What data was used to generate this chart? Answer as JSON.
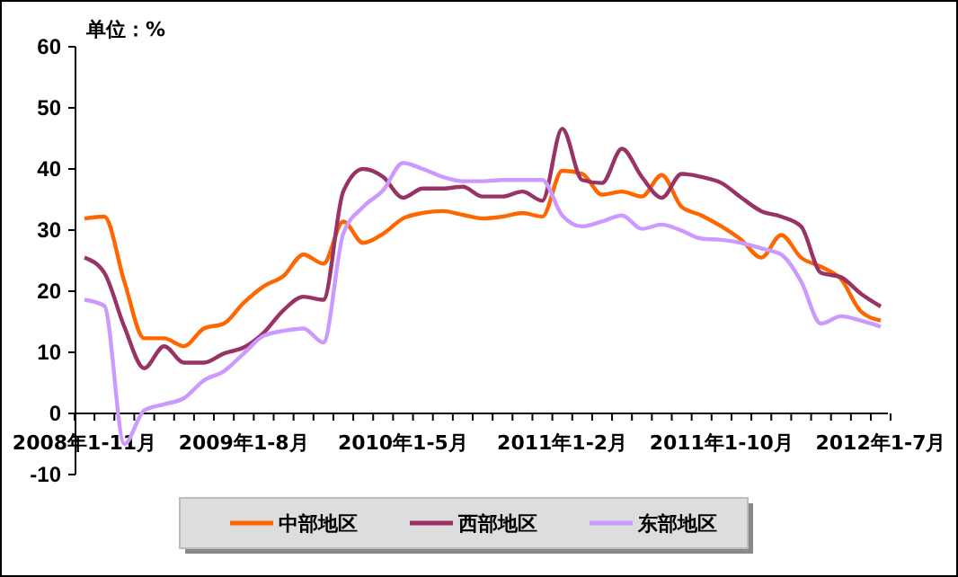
{
  "chart_data": {
    "type": "line",
    "ylabel": "单位：%",
    "categories": [
      "2008年1-11月",
      null,
      null,
      null,
      null,
      null,
      null,
      null,
      "2009年1-8月",
      null,
      null,
      null,
      null,
      null,
      null,
      null,
      "2010年1-5月",
      null,
      null,
      null,
      null,
      null,
      null,
      null,
      "2011年1-2月",
      null,
      null,
      null,
      null,
      null,
      null,
      null,
      "2011年1-10月",
      null,
      null,
      null,
      null,
      null,
      null,
      null,
      "2012年1-7月"
    ],
    "ylim": [
      -10,
      60
    ],
    "yticks": [
      -10,
      0,
      10,
      20,
      30,
      40,
      50,
      60
    ],
    "grid": false,
    "legend": "bottom",
    "marker": "none",
    "line_style": "solid",
    "series": [
      {
        "name": "中部地区",
        "color": "#ff6600",
        "values": [
          31.9,
          32.2,
          21.6,
          12.3,
          12.3,
          11,
          13.9,
          14.7,
          18.1,
          20.8,
          22.5,
          26,
          24.5,
          31.4,
          27.9,
          29.4,
          31.9,
          32.8,
          33.1,
          32.5,
          31.9,
          32.2,
          32.8,
          32.2,
          39.7,
          39.2,
          35.8,
          36.3,
          35.5,
          39,
          33.8,
          32.4,
          30.6,
          28.4,
          25.5,
          29.2,
          25.5,
          24,
          22,
          16.7,
          15.2
        ]
      },
      {
        "name": "西部地区",
        "color": "#993366",
        "values": [
          25.5,
          23,
          14.2,
          7.4,
          11,
          8.3,
          8.3,
          9.8,
          10.8,
          13.2,
          16.9,
          19.1,
          18.6,
          36.3,
          40,
          38.7,
          35.3,
          36.8,
          36.8,
          37.1,
          35.5,
          35.5,
          36.3,
          34.8,
          46.6,
          38.2,
          37.7,
          43.3,
          38.7,
          35.3,
          39.2,
          38.7,
          37.7,
          35.3,
          33.1,
          32.2,
          30.6,
          23,
          22.3,
          19.6,
          17.5
        ]
      },
      {
        "name": "东部地区",
        "color": "#cc99ff",
        "values": [
          18.6,
          17.6,
          -5,
          0.5,
          1.5,
          2.5,
          5.4,
          6.9,
          9.8,
          12.7,
          13.5,
          13.9,
          11.6,
          29.4,
          33.8,
          36.5,
          41,
          40,
          38.7,
          38,
          38,
          38.2,
          38.2,
          38.2,
          32.4,
          30.6,
          31.4,
          32.4,
          30.2,
          30.9,
          29.9,
          28.6,
          28.4,
          27.9,
          27,
          26,
          21.6,
          14.7,
          15.9,
          15.2,
          14.2
        ]
      }
    ]
  }
}
